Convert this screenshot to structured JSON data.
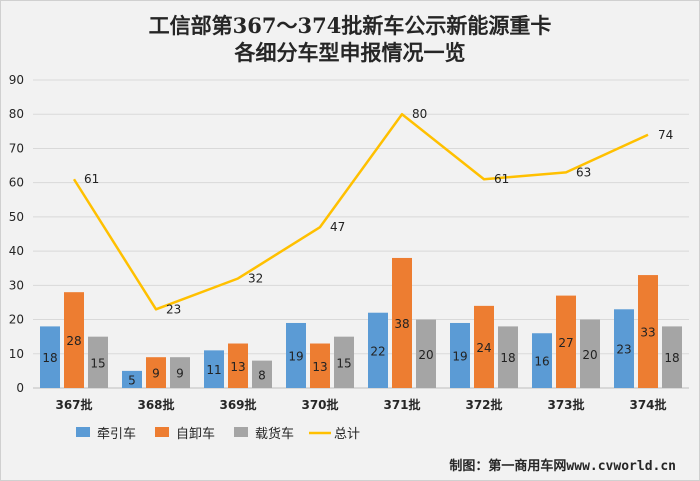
{
  "chart_data": {
    "type": "bar",
    "title": "工信部第367～374批新车公示新能源重卡",
    "subtitle": "各细分车型申报情况一览",
    "categories": [
      "367批",
      "368批",
      "369批",
      "370批",
      "371批",
      "372批",
      "373批",
      "374批"
    ],
    "series": [
      {
        "name": "牵引车",
        "type": "bar",
        "color": "#5B9BD5",
        "values": [
          18,
          5,
          11,
          19,
          22,
          19,
          16,
          23
        ]
      },
      {
        "name": "自卸车",
        "type": "bar",
        "color": "#ED7D31",
        "values": [
          28,
          9,
          13,
          13,
          38,
          24,
          27,
          33
        ]
      },
      {
        "name": "载货车",
        "type": "bar",
        "color": "#A5A5A5",
        "values": [
          15,
          9,
          8,
          15,
          20,
          18,
          20,
          18
        ]
      },
      {
        "name": "总计",
        "type": "line",
        "color": "#FFC000",
        "values": [
          61,
          23,
          32,
          47,
          80,
          61,
          63,
          74
        ]
      }
    ],
    "ylim": [
      0,
      90
    ],
    "yticks": [
      0,
      10,
      20,
      30,
      40,
      50,
      60,
      70,
      80,
      90
    ],
    "grid": true,
    "legend_position": "bottom-left",
    "xlabel": "",
    "ylabel": ""
  },
  "credit": "制图：第一商用车网www.cvworld.cn"
}
